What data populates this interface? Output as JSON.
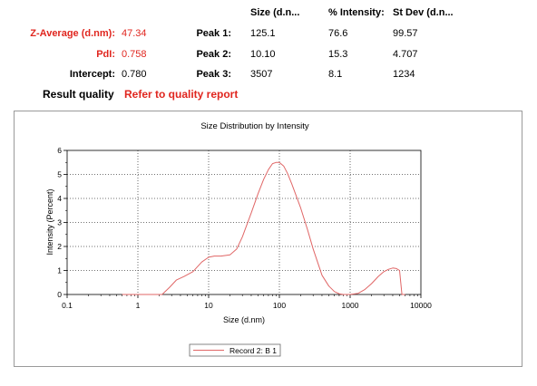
{
  "summary": {
    "z_average_label": "Z-Average (d.nm):",
    "z_average_value": "47.34",
    "pdi_label": "PdI:",
    "pdi_value": "0.758",
    "intercept_label": "Intercept:",
    "intercept_value": "0.780",
    "result_quality_label": "Result quality",
    "result_quality_value": "Refer to quality report"
  },
  "peaks": {
    "headers": [
      "Size (d.n...",
      "% Intensity:",
      "St Dev (d.n..."
    ],
    "rows": [
      {
        "label": "Peak 1:",
        "size": "125.1",
        "intensity": "76.6",
        "stdev": "99.57"
      },
      {
        "label": "Peak 2:",
        "size": "10.10",
        "intensity": "15.3",
        "stdev": "4.707"
      },
      {
        "label": "Peak 3:",
        "size": "3507",
        "intensity": "8.1",
        "stdev": "1234"
      }
    ]
  },
  "colors": {
    "accent_red": "#e0261f",
    "series": "#e06666"
  },
  "chart_data": {
    "type": "line",
    "title": "Size Distribution by Intensity",
    "xlabel": "Size (d.nm)",
    "ylabel": "Intensity (Percent)",
    "xscale": "log",
    "xlim": [
      0.1,
      10000
    ],
    "ylim": [
      0,
      6
    ],
    "x_ticks": [
      "0.1",
      "1",
      "10",
      "100",
      "1000",
      "10000"
    ],
    "y_ticks": [
      "0",
      "1",
      "2",
      "3",
      "4",
      "5",
      "6"
    ],
    "grid": true,
    "legend_position": "bottom-center",
    "series": [
      {
        "name": "Record 2: B 1",
        "points": [
          [
            0.6,
            0
          ],
          [
            1,
            0
          ],
          [
            1.5,
            0
          ],
          [
            2.2,
            0
          ],
          [
            2.8,
            0.3
          ],
          [
            3.5,
            0.6
          ],
          [
            4.5,
            0.75
          ],
          [
            6,
            0.95
          ],
          [
            8,
            1.35
          ],
          [
            10,
            1.55
          ],
          [
            12,
            1.6
          ],
          [
            15,
            1.6
          ],
          [
            20,
            1.65
          ],
          [
            25,
            1.9
          ],
          [
            30,
            2.4
          ],
          [
            40,
            3.4
          ],
          [
            50,
            4.2
          ],
          [
            60,
            4.8
          ],
          [
            70,
            5.2
          ],
          [
            80,
            5.45
          ],
          [
            90,
            5.5
          ],
          [
            100,
            5.5
          ],
          [
            115,
            5.35
          ],
          [
            130,
            5.05
          ],
          [
            150,
            4.6
          ],
          [
            200,
            3.6
          ],
          [
            250,
            2.7
          ],
          [
            300,
            1.9
          ],
          [
            400,
            0.8
          ],
          [
            500,
            0.35
          ],
          [
            600,
            0.12
          ],
          [
            700,
            0.03
          ],
          [
            800,
            0
          ],
          [
            1000,
            0
          ],
          [
            1300,
            0.05
          ],
          [
            1600,
            0.2
          ],
          [
            2000,
            0.45
          ],
          [
            2500,
            0.75
          ],
          [
            3000,
            0.95
          ],
          [
            3500,
            1.05
          ],
          [
            4000,
            1.1
          ],
          [
            4500,
            1.08
          ],
          [
            5000,
            1.0
          ],
          [
            5200,
            0.5
          ],
          [
            5400,
            0
          ],
          [
            6000,
            0
          ]
        ]
      }
    ]
  }
}
